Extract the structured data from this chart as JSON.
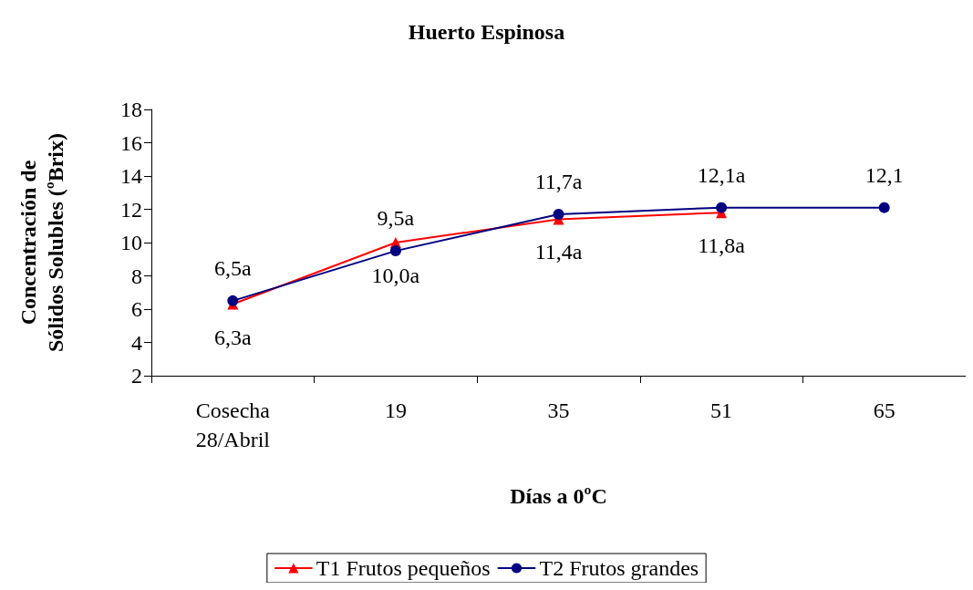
{
  "chart_data": {
    "type": "line",
    "title": "Huerto Espinosa",
    "xlabel": "Días a 0ºC",
    "ylabel": "Concentración de\nSólidos Solubles (ºBrix)",
    "categories": [
      "Cosecha\n28/Abril",
      "19",
      "35",
      "51",
      "65"
    ],
    "series": [
      {
        "name": "T1 Frutos pequeños",
        "color": "#ff0000",
        "marker": "triangle",
        "values": [
          6.3,
          10.0,
          11.4,
          11.8,
          null
        ],
        "value_labels": [
          "6,3a",
          "10,0a",
          "11,4a",
          "11,8a",
          null
        ]
      },
      {
        "name": "T2 Frutos grandes",
        "color": "#000080",
        "marker": "circle",
        "values": [
          6.5,
          9.5,
          11.7,
          12.1,
          12.1
        ],
        "value_labels": [
          "6,5a",
          "9,5a",
          "11,7a",
          "12,1a",
          "12,1"
        ]
      }
    ],
    "ylim": [
      2,
      18
    ],
    "yticks": [
      2,
      4,
      6,
      8,
      10,
      12,
      14,
      16,
      18
    ],
    "grid": false,
    "legend": "bottom",
    "line_style": "solid"
  }
}
